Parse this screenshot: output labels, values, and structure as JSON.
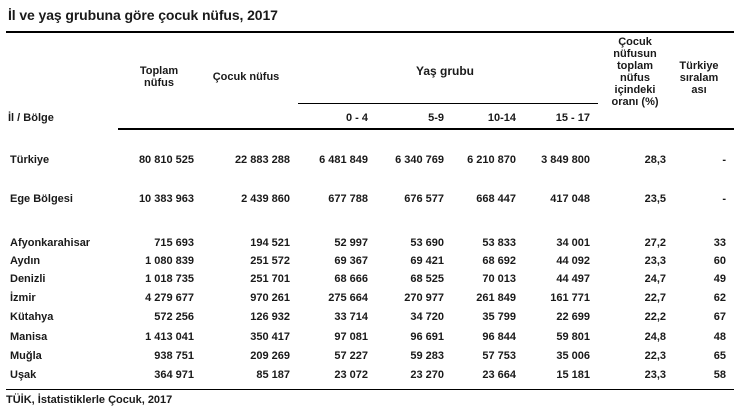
{
  "title": "İl ve yaş grubuna göre çocuk nüfus, 2017",
  "headers": {
    "region": "İl / Bölge",
    "total": "Toplam nüfus",
    "child": "Çocuk nüfus",
    "age_group": "Yaş grubu",
    "age_cols": [
      "0 - 4",
      "5-9",
      "10-14",
      "15 - 17"
    ],
    "ratio": "Çocuk nüfusun toplam nüfus içindeki oranı (%)",
    "rank": "Türkiye sıralam ası"
  },
  "rows": [
    {
      "name": "Türkiye",
      "total": "80 810 525",
      "child": "22 883 288",
      "a0": "6 481 849",
      "a1": "6 340 769",
      "a2": "6 210 870",
      "a3": "3 849 800",
      "ratio": "28,3",
      "rank": "-"
    },
    {
      "name": "Ege Bölgesi",
      "total": "10 383 963",
      "child": "2 439 860",
      "a0": "677 788",
      "a1": "676 577",
      "a2": "668 447",
      "a3": "417 048",
      "ratio": "23,5",
      "rank": "-"
    },
    {
      "name": "Afyonkarahisar",
      "total": "715 693",
      "child": "194 521",
      "a0": "52 997",
      "a1": "53 690",
      "a2": "53 833",
      "a3": "34 001",
      "ratio": "27,2",
      "rank": "33"
    },
    {
      "name": "Aydın",
      "total": "1 080 839",
      "child": "251 572",
      "a0": "69 367",
      "a1": "69 421",
      "a2": "68 692",
      "a3": "44 092",
      "ratio": "23,3",
      "rank": "60"
    },
    {
      "name": "Denizli",
      "total": "1 018 735",
      "child": "251 701",
      "a0": "68 666",
      "a1": "68 525",
      "a2": "70 013",
      "a3": "44 497",
      "ratio": "24,7",
      "rank": "49"
    },
    {
      "name": "İzmir",
      "total": "4 279 677",
      "child": "970 261",
      "a0": "275 664",
      "a1": "270 977",
      "a2": "261 849",
      "a3": "161 771",
      "ratio": "22,7",
      "rank": "62"
    },
    {
      "name": "Kütahya",
      "total": "572 256",
      "child": "126 932",
      "a0": "33 714",
      "a1": "34 720",
      "a2": "35 799",
      "a3": "22 699",
      "ratio": "22,2",
      "rank": "67"
    },
    {
      "name": "Manisa",
      "total": "1 413 041",
      "child": "350 417",
      "a0": "97 081",
      "a1": "96 691",
      "a2": "96 844",
      "a3": "59 801",
      "ratio": "24,8",
      "rank": "48"
    },
    {
      "name": "Muğla",
      "total": "938 751",
      "child": "209 269",
      "a0": "57 227",
      "a1": "59 283",
      "a2": "57 753",
      "a3": "35 006",
      "ratio": "22,3",
      "rank": "65"
    },
    {
      "name": "Uşak",
      "total": "364 971",
      "child": "85 187",
      "a0": "23 072",
      "a1": "23 270",
      "a2": "23 664",
      "a3": "15 181",
      "ratio": "23,3",
      "rank": "58"
    }
  ],
  "footer": "TÜİK, İstatistiklerle Çocuk, 2017"
}
